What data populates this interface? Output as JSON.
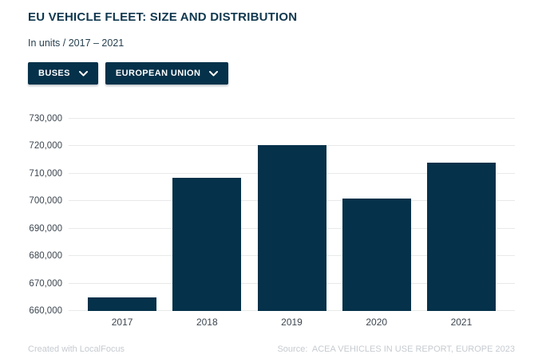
{
  "header": {
    "title": "EU VEHICLE FLEET: SIZE AND DISTRIBUTION",
    "subtitle": "In units / 2017 – 2021"
  },
  "filters": [
    {
      "label": "BUSES",
      "icon": "chevron-down-icon"
    },
    {
      "label": "EUROPEAN UNION",
      "icon": "chevron-down-icon"
    }
  ],
  "chart_data": {
    "type": "bar",
    "title": "EU VEHICLE FLEET: SIZE AND DISTRIBUTION",
    "subtitle": "In units / 2017 – 2021",
    "categories": [
      "2017",
      "2018",
      "2019",
      "2020",
      "2021"
    ],
    "values": [
      665000,
      708500,
      720500,
      701000,
      714000
    ],
    "xlabel": "",
    "ylabel": "",
    "ylim": [
      660000,
      730000
    ],
    "yticks": [
      660000,
      670000,
      680000,
      690000,
      700000,
      710000,
      720000,
      730000
    ],
    "grid": true,
    "legend": "none"
  },
  "footer": {
    "credit": "Created with LocalFocus",
    "source": "Source:  ACEA VEHICLES IN USE REPORT, EUROPE 2023"
  },
  "colors": {
    "navy": "#05314a",
    "title": "#10384f",
    "subtitle": "#27404f",
    "axis": "#3c4650",
    "grid": "#e8e9ea",
    "muted": "#c6cbd0"
  }
}
